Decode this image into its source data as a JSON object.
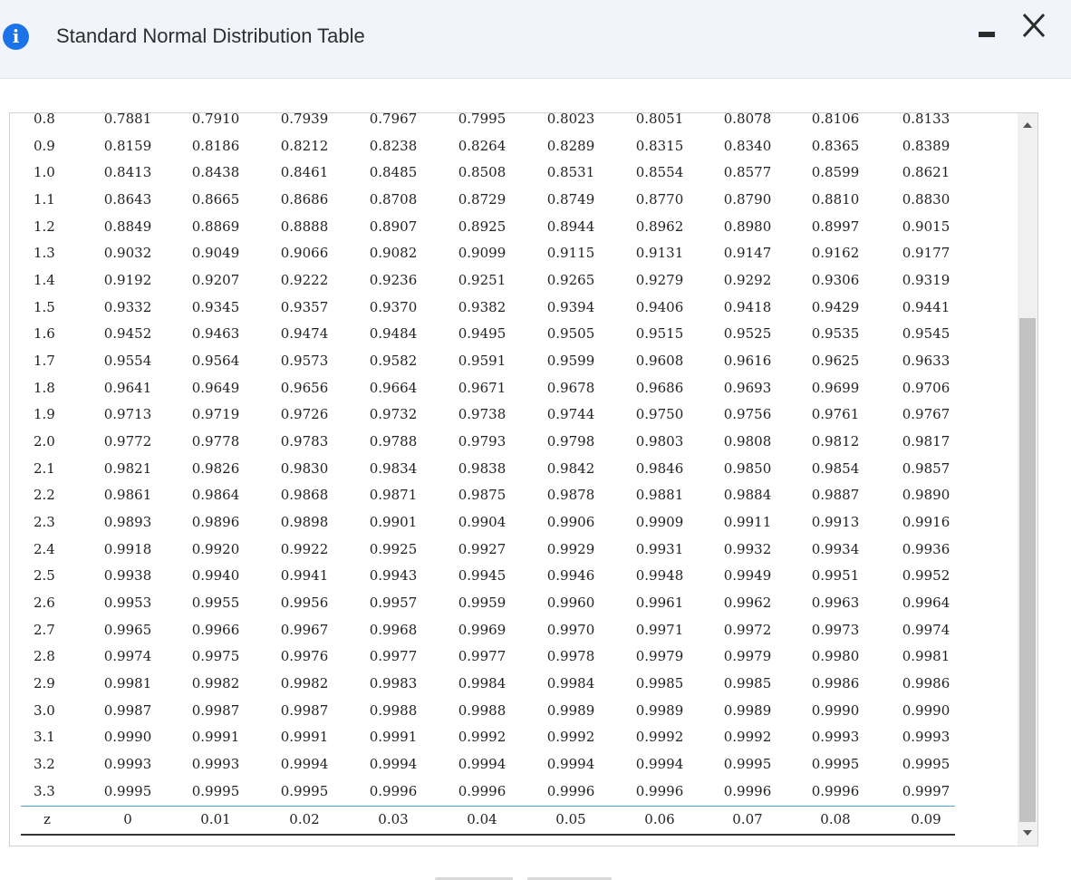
{
  "window": {
    "title": "Standard Normal Distribution Table",
    "info_icon_glyph": "i"
  },
  "table": {
    "rows": [
      [
        "0.8",
        "0.7881",
        "0.7910",
        "0.7939",
        "0.7967",
        "0.7995",
        "0.8023",
        "0.8051",
        "0.8078",
        "0.8106",
        "0.8133"
      ],
      [
        "0.9",
        "0.8159",
        "0.8186",
        "0.8212",
        "0.8238",
        "0.8264",
        "0.8289",
        "0.8315",
        "0.8340",
        "0.8365",
        "0.8389"
      ],
      [
        "1.0",
        "0.8413",
        "0.8438",
        "0.8461",
        "0.8485",
        "0.8508",
        "0.8531",
        "0.8554",
        "0.8577",
        "0.8599",
        "0.8621"
      ],
      [
        "1.1",
        "0.8643",
        "0.8665",
        "0.8686",
        "0.8708",
        "0.8729",
        "0.8749",
        "0.8770",
        "0.8790",
        "0.8810",
        "0.8830"
      ],
      [
        "1.2",
        "0.8849",
        "0.8869",
        "0.8888",
        "0.8907",
        "0.8925",
        "0.8944",
        "0.8962",
        "0.8980",
        "0.8997",
        "0.9015"
      ],
      [
        "1.3",
        "0.9032",
        "0.9049",
        "0.9066",
        "0.9082",
        "0.9099",
        "0.9115",
        "0.9131",
        "0.9147",
        "0.9162",
        "0.9177"
      ],
      [
        "1.4",
        "0.9192",
        "0.9207",
        "0.9222",
        "0.9236",
        "0.9251",
        "0.9265",
        "0.9279",
        "0.9292",
        "0.9306",
        "0.9319"
      ],
      [
        "1.5",
        "0.9332",
        "0.9345",
        "0.9357",
        "0.9370",
        "0.9382",
        "0.9394",
        "0.9406",
        "0.9418",
        "0.9429",
        "0.9441"
      ],
      [
        "1.6",
        "0.9452",
        "0.9463",
        "0.9474",
        "0.9484",
        "0.9495",
        "0.9505",
        "0.9515",
        "0.9525",
        "0.9535",
        "0.9545"
      ],
      [
        "1.7",
        "0.9554",
        "0.9564",
        "0.9573",
        "0.9582",
        "0.9591",
        "0.9599",
        "0.9608",
        "0.9616",
        "0.9625",
        "0.9633"
      ],
      [
        "1.8",
        "0.9641",
        "0.9649",
        "0.9656",
        "0.9664",
        "0.9671",
        "0.9678",
        "0.9686",
        "0.9693",
        "0.9699",
        "0.9706"
      ],
      [
        "1.9",
        "0.9713",
        "0.9719",
        "0.9726",
        "0.9732",
        "0.9738",
        "0.9744",
        "0.9750",
        "0.9756",
        "0.9761",
        "0.9767"
      ],
      [
        "2.0",
        "0.9772",
        "0.9778",
        "0.9783",
        "0.9788",
        "0.9793",
        "0.9798",
        "0.9803",
        "0.9808",
        "0.9812",
        "0.9817"
      ],
      [
        "2.1",
        "0.9821",
        "0.9826",
        "0.9830",
        "0.9834",
        "0.9838",
        "0.9842",
        "0.9846",
        "0.9850",
        "0.9854",
        "0.9857"
      ],
      [
        "2.2",
        "0.9861",
        "0.9864",
        "0.9868",
        "0.9871",
        "0.9875",
        "0.9878",
        "0.9881",
        "0.9884",
        "0.9887",
        "0.9890"
      ],
      [
        "2.3",
        "0.9893",
        "0.9896",
        "0.9898",
        "0.9901",
        "0.9904",
        "0.9906",
        "0.9909",
        "0.9911",
        "0.9913",
        "0.9916"
      ],
      [
        "2.4",
        "0.9918",
        "0.9920",
        "0.9922",
        "0.9925",
        "0.9927",
        "0.9929",
        "0.9931",
        "0.9932",
        "0.9934",
        "0.9936"
      ],
      [
        "2.5",
        "0.9938",
        "0.9940",
        "0.9941",
        "0.9943",
        "0.9945",
        "0.9946",
        "0.9948",
        "0.9949",
        "0.9951",
        "0.9952"
      ],
      [
        "2.6",
        "0.9953",
        "0.9955",
        "0.9956",
        "0.9957",
        "0.9959",
        "0.9960",
        "0.9961",
        "0.9962",
        "0.9963",
        "0.9964"
      ],
      [
        "2.7",
        "0.9965",
        "0.9966",
        "0.9967",
        "0.9968",
        "0.9969",
        "0.9970",
        "0.9971",
        "0.9972",
        "0.9973",
        "0.9974"
      ],
      [
        "2.8",
        "0.9974",
        "0.9975",
        "0.9976",
        "0.9977",
        "0.9977",
        "0.9978",
        "0.9979",
        "0.9979",
        "0.9980",
        "0.9981"
      ],
      [
        "2.9",
        "0.9981",
        "0.9982",
        "0.9982",
        "0.9983",
        "0.9984",
        "0.9984",
        "0.9985",
        "0.9985",
        "0.9986",
        "0.9986"
      ],
      [
        "3.0",
        "0.9987",
        "0.9987",
        "0.9987",
        "0.9988",
        "0.9988",
        "0.9989",
        "0.9989",
        "0.9989",
        "0.9990",
        "0.9990"
      ],
      [
        "3.1",
        "0.9990",
        "0.9991",
        "0.9991",
        "0.9991",
        "0.9992",
        "0.9992",
        "0.9992",
        "0.9992",
        "0.9993",
        "0.9993"
      ],
      [
        "3.2",
        "0.9993",
        "0.9993",
        "0.9994",
        "0.9994",
        "0.9994",
        "0.9994",
        "0.9994",
        "0.9995",
        "0.9995",
        "0.9995"
      ],
      [
        "3.3",
        "0.9995",
        "0.9995",
        "0.9995",
        "0.9996",
        "0.9996",
        "0.9996",
        "0.9996",
        "0.9996",
        "0.9996",
        "0.9997"
      ]
    ],
    "footer": [
      "z",
      "0",
      "0.01",
      "0.02",
      "0.03",
      "0.04",
      "0.05",
      "0.06",
      "0.07",
      "0.08",
      "0.09"
    ]
  },
  "colors": {
    "header_bg": "#f1f5fb",
    "info_icon": "#1a73e8",
    "footer_rule": "#4aa6d8",
    "scroll_thumb": "#c2c2c2"
  },
  "icons": {
    "info": "info-icon",
    "minimize": "minimize-icon",
    "close": "close-icon",
    "scroll_up": "scroll-up-arrow-icon",
    "scroll_down": "scroll-down-arrow-icon"
  }
}
